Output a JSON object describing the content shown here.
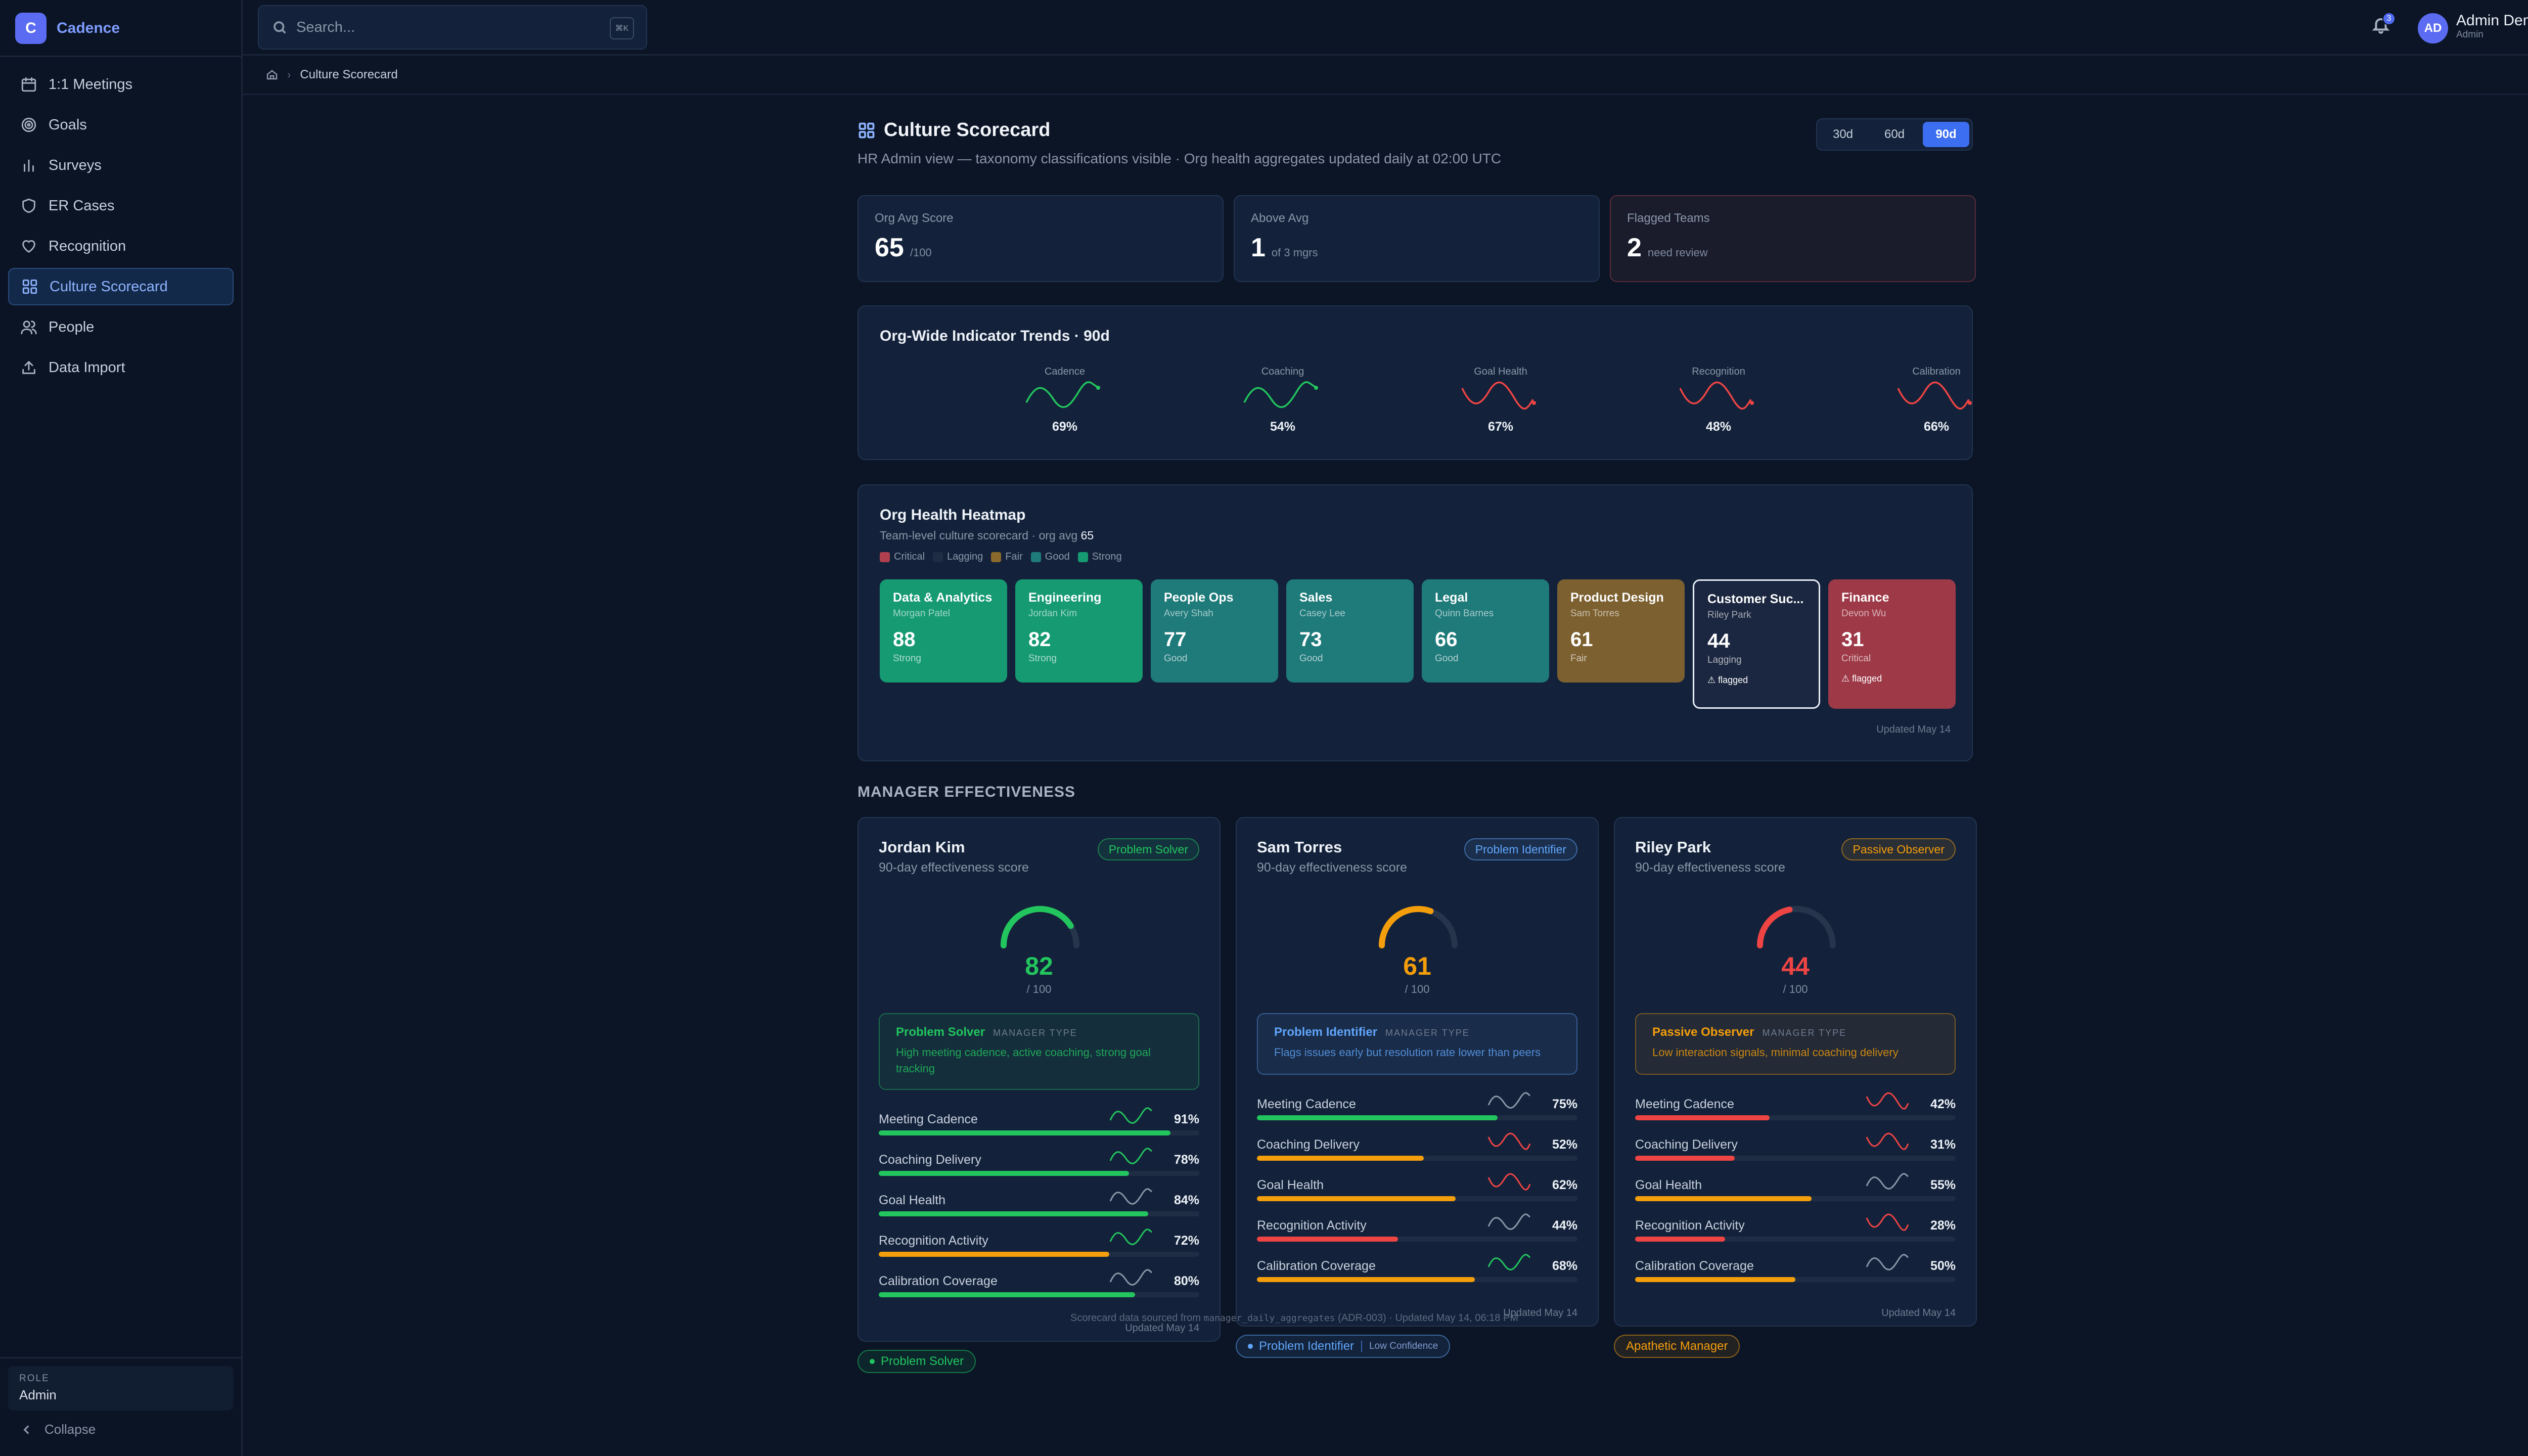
{
  "brand": {
    "logo": "C",
    "name": "Cadence"
  },
  "sidebar": {
    "items": [
      {
        "label": "1:1 Meetings",
        "icon": "calendar-icon"
      },
      {
        "label": "Goals",
        "icon": "target-icon"
      },
      {
        "label": "Surveys",
        "icon": "bar-chart-icon"
      },
      {
        "label": "ER Cases",
        "icon": "shield-icon"
      },
      {
        "label": "Recognition",
        "icon": "heart-icon"
      },
      {
        "label": "Culture Scorecard",
        "icon": "grid-icon",
        "active": true
      },
      {
        "label": "People",
        "icon": "users-icon"
      },
      {
        "label": "Data Import",
        "icon": "upload-icon"
      }
    ],
    "role_label": "ROLE",
    "role_value": "Admin",
    "collapse": "Collapse"
  },
  "topbar": {
    "search_placeholder": "Search...",
    "search_shortcut": "⌘K",
    "notifications_count": "3",
    "user_initials": "AD",
    "user_name": "Admin Demo",
    "user_role": "Admin"
  },
  "breadcrumb": {
    "current": "Culture Scorecard"
  },
  "page": {
    "title": "Culture Scorecard",
    "subtitle": "HR Admin view — taxonomy classifications visible · Org health aggregates updated daily at 02:00 UTC",
    "periods": [
      "30d",
      "60d",
      "90d"
    ],
    "active_period": "90d"
  },
  "stats": [
    {
      "label": "Org Avg Score",
      "value": "65",
      "suffix": "/100"
    },
    {
      "label": "Above Avg",
      "value": "1",
      "suffix": "of 3 mgrs"
    },
    {
      "label": "Flagged Teams",
      "value": "2",
      "suffix": "need review"
    }
  ],
  "trends": {
    "title": "Org-Wide Indicator Trends · 90d",
    "items": [
      {
        "label": "Cadence",
        "value": "69%",
        "color": "#22c55e"
      },
      {
        "label": "Coaching",
        "value": "54%",
        "color": "#22c55e"
      },
      {
        "label": "Goal Health",
        "value": "67%",
        "color": "#ef4444"
      },
      {
        "label": "Recognition",
        "value": "48%",
        "color": "#ef4444"
      },
      {
        "label": "Calibration",
        "value": "66%",
        "color": "#ef4444"
      }
    ]
  },
  "heatmap": {
    "title": "Org Health Heatmap",
    "subtitle_prefix": "Team-level culture scorecard · org avg",
    "org_avg": "65",
    "legend": [
      {
        "label": "Critical",
        "color": "#b0404f"
      },
      {
        "label": "Lagging",
        "color": "#1f2d44"
      },
      {
        "label": "Fair",
        "color": "#8a6a2c"
      },
      {
        "label": "Good",
        "color": "#1f7a7a"
      },
      {
        "label": "Strong",
        "color": "#159a72"
      }
    ],
    "teams": [
      {
        "name": "Data & Analytics",
        "manager": "Morgan Patel",
        "score": "88",
        "status": "Strong",
        "color": "#159a72",
        "flag": ""
      },
      {
        "name": "Engineering",
        "manager": "Jordan Kim",
        "score": "82",
        "status": "Strong",
        "color": "#159a72",
        "flag": ""
      },
      {
        "name": "People Ops",
        "manager": "Avery Shah",
        "score": "77",
        "status": "Good",
        "color": "#1f7a7a",
        "flag": ""
      },
      {
        "name": "Sales",
        "manager": "Casey Lee",
        "score": "73",
        "status": "Good",
        "color": "#1f7a7a",
        "flag": ""
      },
      {
        "name": "Legal",
        "manager": "Quinn Barnes",
        "score": "66",
        "status": "Good",
        "color": "#1f7a7a",
        "flag": ""
      },
      {
        "name": "Product Design",
        "manager": "Sam Torres",
        "score": "61",
        "status": "Fair",
        "color": "#7c6030",
        "flag": ""
      },
      {
        "name": "Customer Suc...",
        "manager": "Riley Park",
        "score": "44",
        "status": "Lagging",
        "color": "#1b2740",
        "flag": "⚠ flagged"
      },
      {
        "name": "Finance",
        "manager": "Devon Wu",
        "score": "31",
        "status": "Critical",
        "color": "#9e3a48",
        "flag": "⚠ flagged"
      }
    ],
    "updated": "Updated May 14"
  },
  "managers_section": "MANAGER EFFECTIVENESS",
  "managers": [
    {
      "name": "Jordan Kim",
      "subtitle": "90-day effectiveness score",
      "type": "Problem Solver",
      "color": "#22c55e",
      "score": "82",
      "score_value": 82,
      "out_of": "/ 100",
      "box_title": "Problem Solver",
      "box_tag": "MANAGER TYPE",
      "box_desc": "High meeting cadence, active coaching, strong goal tracking",
      "metrics": [
        {
          "label": "Meeting Cadence",
          "value": "91%",
          "pct": 91,
          "bar": "#22c55e",
          "trend": "#22c55e"
        },
        {
          "label": "Coaching Delivery",
          "value": "78%",
          "pct": 78,
          "bar": "#22c55e",
          "trend": "#22c55e"
        },
        {
          "label": "Goal Health",
          "value": "84%",
          "pct": 84,
          "bar": "#22c55e",
          "trend": "#8b96a8"
        },
        {
          "label": "Recognition Activity",
          "value": "72%",
          "pct": 72,
          "bar": "#f59e0b",
          "trend": "#22c55e"
        },
        {
          "label": "Calibration Coverage",
          "value": "80%",
          "pct": 80,
          "bar": "#22c55e",
          "trend": "#8b96a8"
        }
      ],
      "updated": "Updated May 14",
      "pill": "Problem Solver",
      "pill_conf": ""
    },
    {
      "name": "Sam Torres",
      "subtitle": "90-day effectiveness score",
      "type": "Problem Identifier",
      "color": "#f59e0b",
      "type_color": "#60a5fa",
      "score": "61",
      "score_value": 61,
      "out_of": "/ 100",
      "box_title": "Problem Identifier",
      "box_tag": "MANAGER TYPE",
      "box_desc": "Flags issues early but resolution rate lower than peers",
      "metrics": [
        {
          "label": "Meeting Cadence",
          "value": "75%",
          "pct": 75,
          "bar": "#22c55e",
          "trend": "#8b96a8"
        },
        {
          "label": "Coaching Delivery",
          "value": "52%",
          "pct": 52,
          "bar": "#f59e0b",
          "trend": "#ef4444"
        },
        {
          "label": "Goal Health",
          "value": "62%",
          "pct": 62,
          "bar": "#f59e0b",
          "trend": "#ef4444"
        },
        {
          "label": "Recognition Activity",
          "value": "44%",
          "pct": 44,
          "bar": "#ef4444",
          "trend": "#8b96a8"
        },
        {
          "label": "Calibration Coverage",
          "value": "68%",
          "pct": 68,
          "bar": "#f59e0b",
          "trend": "#22c55e"
        }
      ],
      "updated": "Updated May 14",
      "pill": "Problem Identifier",
      "pill_conf": "Low Confidence"
    },
    {
      "name": "Riley Park",
      "subtitle": "90-day effectiveness score",
      "type": "Passive Observer",
      "color": "#ef4444",
      "type_color": "#f59e0b",
      "score": "44",
      "score_value": 44,
      "out_of": "/ 100",
      "box_title": "Passive Observer",
      "box_tag": "MANAGER TYPE",
      "box_desc": "Low interaction signals, minimal coaching delivery",
      "metrics": [
        {
          "label": "Meeting Cadence",
          "value": "42%",
          "pct": 42,
          "bar": "#ef4444",
          "trend": "#ef4444"
        },
        {
          "label": "Coaching Delivery",
          "value": "31%",
          "pct": 31,
          "bar": "#ef4444",
          "trend": "#ef4444"
        },
        {
          "label": "Goal Health",
          "value": "55%",
          "pct": 55,
          "bar": "#f59e0b",
          "trend": "#8b96a8"
        },
        {
          "label": "Recognition Activity",
          "value": "28%",
          "pct": 28,
          "bar": "#ef4444",
          "trend": "#ef4444"
        },
        {
          "label": "Calibration Coverage",
          "value": "50%",
          "pct": 50,
          "bar": "#f59e0b",
          "trend": "#8b96a8"
        }
      ],
      "updated": "Updated May 14",
      "pill": "Apathetic Manager",
      "pill_conf": ""
    }
  ],
  "footer": {
    "prefix": "Scorecard data sourced from",
    "code": "manager_daily_aggregates",
    "suffix": "(ADR-003) · Updated May 14, 06:18 PM"
  }
}
